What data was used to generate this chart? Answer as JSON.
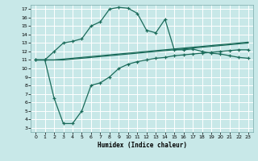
{
  "xlabel": "Humidex (Indice chaleur)",
  "bg_color": "#c8e8e8",
  "grid_color": "#ffffff",
  "line_color": "#1a6b5a",
  "xlim": [
    -0.5,
    23.5
  ],
  "ylim": [
    2.5,
    17.5
  ],
  "xticks": [
    0,
    1,
    2,
    3,
    4,
    5,
    6,
    7,
    8,
    9,
    10,
    11,
    12,
    13,
    14,
    15,
    16,
    17,
    18,
    19,
    20,
    21,
    22,
    23
  ],
  "yticks": [
    3,
    4,
    5,
    6,
    7,
    8,
    9,
    10,
    11,
    12,
    13,
    14,
    15,
    16,
    17
  ],
  "line1_x": [
    0,
    1,
    2,
    3,
    4,
    5,
    6,
    7,
    8,
    9,
    10,
    11,
    12,
    13,
    14,
    15,
    16,
    17,
    18,
    19,
    20,
    21,
    22,
    23
  ],
  "line1_y": [
    11.0,
    11.0,
    12.0,
    13.0,
    13.2,
    13.5,
    15.0,
    15.5,
    17.0,
    17.2,
    17.1,
    16.5,
    14.5,
    14.2,
    15.8,
    12.2,
    12.2,
    12.3,
    12.0,
    11.8,
    11.7,
    11.5,
    11.3,
    11.2
  ],
  "line2a_x": [
    0,
    1,
    2,
    3,
    4,
    5,
    6,
    7,
    8,
    9,
    10,
    11,
    12,
    13,
    14,
    15,
    16,
    17,
    18,
    19,
    20,
    21,
    22,
    23
  ],
  "line2a_y": [
    11.0,
    11.0,
    11.0,
    11.1,
    11.2,
    11.3,
    11.4,
    11.5,
    11.6,
    11.7,
    11.8,
    11.9,
    12.0,
    12.1,
    12.2,
    12.3,
    12.4,
    12.5,
    12.6,
    12.7,
    12.8,
    12.9,
    13.0,
    13.1
  ],
  "line2b_x": [
    0,
    1,
    2,
    3,
    4,
    5,
    6,
    7,
    8,
    9,
    10,
    11,
    12,
    13,
    14,
    15,
    16,
    17,
    18,
    19,
    20,
    21,
    22,
    23
  ],
  "line2b_y": [
    11.0,
    11.0,
    11.0,
    11.0,
    11.1,
    11.2,
    11.3,
    11.4,
    11.5,
    11.6,
    11.7,
    11.8,
    11.9,
    12.0,
    12.1,
    12.2,
    12.3,
    12.4,
    12.5,
    12.6,
    12.7,
    12.8,
    12.9,
    13.0
  ],
  "line3_x": [
    0,
    1,
    2,
    3,
    4,
    5,
    6,
    7,
    8,
    9,
    10,
    11,
    12,
    13,
    14,
    15,
    16,
    17,
    18,
    19,
    20,
    21,
    22,
    23
  ],
  "line3_y": [
    11.0,
    11.0,
    6.5,
    3.5,
    3.5,
    5.0,
    8.0,
    8.3,
    9.0,
    10.0,
    10.5,
    10.8,
    11.0,
    11.2,
    11.3,
    11.5,
    11.6,
    11.7,
    11.8,
    11.9,
    12.0,
    12.1,
    12.2,
    12.2
  ]
}
